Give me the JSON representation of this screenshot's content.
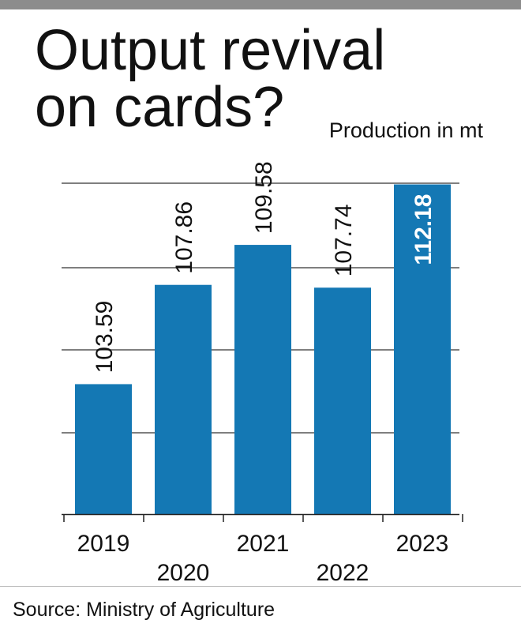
{
  "title_lines": [
    "Output revival",
    "on cards?"
  ],
  "subtitle": "Production in mt",
  "source": "Source: Ministry of Agriculture",
  "colors": {
    "bar": "#1478b4",
    "grid": "#555555",
    "top_rule": "#8c8c8c",
    "highlight_label": "#ffffff"
  },
  "chart_data": {
    "type": "bar",
    "title": "Output revival on cards?",
    "ylabel": "Production in mt",
    "xlabel": "",
    "categories": [
      "2019",
      "2020",
      "2021",
      "2022",
      "2023"
    ],
    "values": [
      103.59,
      107.86,
      109.58,
      107.74,
      112.18
    ],
    "value_labels": [
      "103.59",
      "107.86",
      "109.58",
      "107.74",
      "112.18"
    ],
    "highlight_index": 4,
    "ylim": [
      98,
      112.3
    ],
    "grid": true,
    "legend": "none"
  }
}
